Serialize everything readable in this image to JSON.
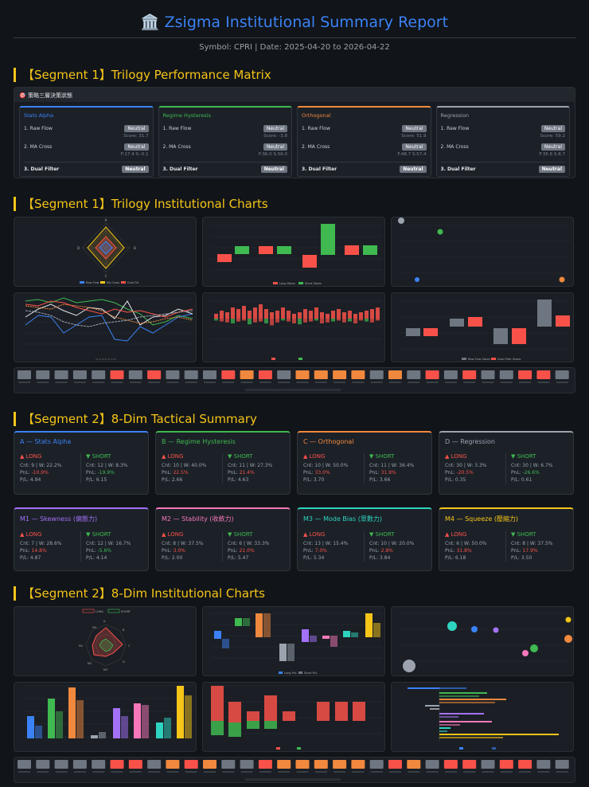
{
  "header": {
    "icon": "🏛️",
    "title": "Zsigma Institutional Summary Report",
    "subtitle": "Symbol: CPRI | Date: 2025-04-20 to 2026-04-22"
  },
  "sections": {
    "s1_matrix": "【Segment 1】Trilogy Performance Matrix",
    "s1_charts": "【Segment 1】Trilogy Institutional Charts",
    "s2_summary": "【Segment 2】8-Dim Tactical Summary",
    "s2_charts": "【Segment 2】8-Dim Institutional Charts"
  },
  "matrix": {
    "header": "🎯 策略三層決策狀態",
    "rows": [
      "1. Raw Flow",
      "2. MA Cross",
      "3. Dual Filter"
    ],
    "cards": [
      {
        "name": "Stats Alpha",
        "color": "#3b82f6",
        "raw": "Neutral",
        "score": "Score: 31.7",
        "ma": "Neutral",
        "ma_detail": "F:17.4 S:-0.1",
        "dual": "Neutral"
      },
      {
        "name": "Regime Hysteresis",
        "color": "#3fb950",
        "raw": "Neutral",
        "score": "Score: -3.8",
        "ma": "Neutral",
        "ma_detail": "F:36.0 S:56.0",
        "dual": "Neutral"
      },
      {
        "name": "Orthogonal",
        "color": "#f0883e",
        "raw": "Neutral",
        "score": "Score: 51.9",
        "ma": "Neutral",
        "ma_detail": "F:48.7 S:57.4",
        "dual": "Neutral"
      },
      {
        "name": "Regression",
        "color": "#9ca3af",
        "raw": "Neutral",
        "score": "Score: 59.2",
        "ma": "Neutral",
        "ma_detail": "F:35.6 S:8.7",
        "dual": "Neutral"
      }
    ]
  },
  "tactical": {
    "long_label": "▲ LONG",
    "short_label": "▼ SHORT",
    "cards": [
      {
        "name": "A — Stats Alpha",
        "color": "#3b82f6",
        "l_cnt": "Cnt: 9 | W: 22.2%",
        "l_pnl": "-10.9%",
        "l_pl": "P/L: 4.94",
        "s_cnt": "Cnt: 12 | W: 8.3%",
        "s_pnl": "-19.9%",
        "s_pl": "P/L: 6.15"
      },
      {
        "name": "B — Regime Hysteresis",
        "color": "#3fb950",
        "l_cnt": "Cnt: 10 | W: 40.0%",
        "l_pnl": "22.5%",
        "l_pl": "P/L: 2.66",
        "s_cnt": "Cnt: 11 | W: 27.3%",
        "s_pnl": "21.4%",
        "s_pl": "P/L: 4.63"
      },
      {
        "name": "C — Orthogonal",
        "color": "#f0883e",
        "l_cnt": "Cnt: 10 | W: 50.0%",
        "l_pnl": "33.0%",
        "l_pl": "P/L: 3.70",
        "s_cnt": "Cnt: 11 | W: 36.4%",
        "s_pnl": "31.9%",
        "s_pl": "P/L: 3.66"
      },
      {
        "name": "D — Regression",
        "color": "#9ca3af",
        "l_cnt": "Cnt: 30 | W: 3.3%",
        "l_pnl": "-20.5%",
        "l_pl": "P/L: 0.35",
        "s_cnt": "Cnt: 30 | W: 6.7%",
        "s_pnl": "-26.6%",
        "s_pl": "P/L: 0.61"
      },
      {
        "name": "M1 — Skewness (偏態力)",
        "color": "#a371f7",
        "l_cnt": "Cnt: 7 | W: 28.6%",
        "l_pnl": "14.8%",
        "l_pl": "P/L: 4.87",
        "s_cnt": "Cnt: 12 | W: 16.7%",
        "s_pnl": "-5.6%",
        "s_pl": "P/L: 4.14"
      },
      {
        "name": "M2 — Stability (收斂力)",
        "color": "#f778ba",
        "l_cnt": "Cnt: 8 | W: 37.5%",
        "l_pnl": "3.0%",
        "l_pl": "P/L: 2.00",
        "s_cnt": "Cnt: 6 | W: 33.3%",
        "s_pnl": "21.0%",
        "s_pl": "P/L: 5.47"
      },
      {
        "name": "M3 — Mode Bias (眾數力)",
        "color": "#2dd4bf",
        "l_cnt": "Cnt: 13 | W: 15.4%",
        "l_pnl": "7.0%",
        "l_pl": "P/L: 5.34",
        "s_cnt": "Cnt: 10 | W: 20.0%",
        "s_pnl": "2.8%",
        "s_pl": "P/L: 3.84"
      },
      {
        "name": "M4 — Squeeze (壓縮力)",
        "color": "#f5c518",
        "l_cnt": "Cnt: 6 | W: 50.0%",
        "l_pnl": "31.8%",
        "l_pl": "P/L: 6.18",
        "s_cnt": "Cnt: 8 | W: 37.5%",
        "s_pnl": "17.9%",
        "s_pl": "P/L: 3.50"
      }
    ]
  },
  "charts": {
    "s1_radar_labels": [
      "A",
      "B",
      "C",
      "D"
    ],
    "s1_radar_legend": [
      "Raw Flow",
      "MA Cross",
      "Dual Filt"
    ],
    "s1_bar_legend": [
      "Long Stasis",
      "Short Stasis"
    ],
    "s1_wf_legend": [
      "Raw Flow Stasis",
      "Dual Filter Stasis"
    ],
    "s2_radar_legend": [
      "LONG",
      "SHORT"
    ],
    "s2_radar_labels": [
      "M4",
      "A",
      "B",
      "C",
      "M1",
      "M2",
      "M3",
      "D"
    ],
    "s2_bar_legend": [
      "Long PnL",
      "Short PnL"
    ]
  }
}
